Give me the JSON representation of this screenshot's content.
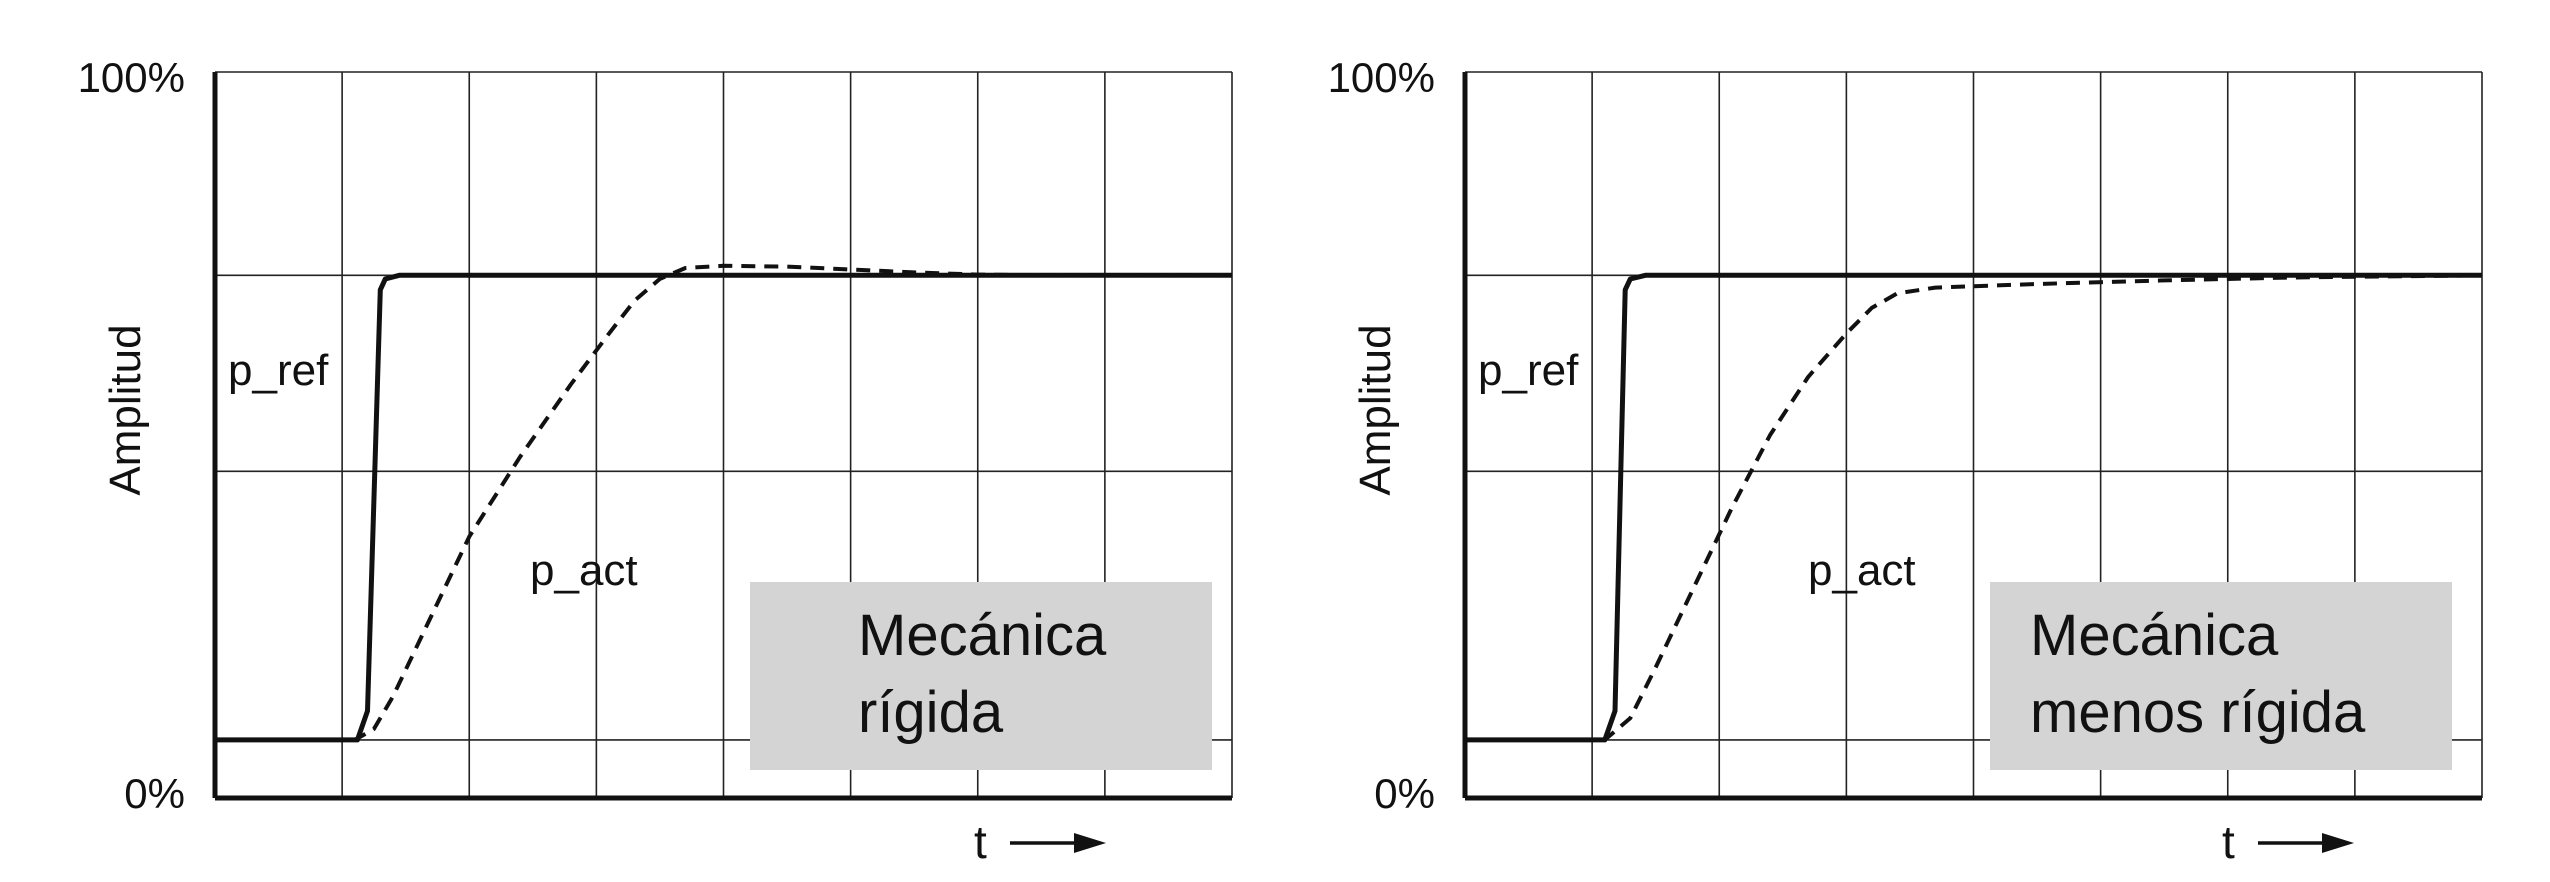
{
  "colors": {
    "line": "#111111",
    "grid": "#222222",
    "box": "#d4d4d4",
    "background": "#ffffff"
  },
  "chart_data": [
    {
      "type": "line",
      "ylabel": "Amplitud",
      "xlabel": "t",
      "x_arrow": "⟶",
      "ytick_top": "100%",
      "ytick_bottom": "0%",
      "xlim": [
        0,
        8
      ],
      "ylim": [
        0,
        100
      ],
      "grid": true,
      "box_lines": [
        "Mecánica",
        "rígida"
      ],
      "series": [
        {
          "name": "p_ref",
          "style": "solid",
          "x": [
            0,
            1.12,
            1.2,
            1.3,
            1.34,
            1.45,
            8
          ],
          "y": [
            8,
            8,
            12,
            70,
            71.5,
            72,
            72
          ]
        },
        {
          "name": "p_act",
          "style": "dashed",
          "x": [
            0,
            1.1,
            1.25,
            1.4,
            1.7,
            2.0,
            2.4,
            2.8,
            3.1,
            3.3,
            3.5,
            3.7,
            4.0,
            4.5,
            5.0,
            5.5,
            6.0,
            6.5,
            8
          ],
          "y": [
            8,
            8,
            9.5,
            14,
            25,
            36,
            47,
            57,
            64,
            68.5,
            71.5,
            73,
            73.3,
            73.2,
            72.8,
            72.4,
            72.1,
            72,
            72
          ]
        }
      ],
      "label_positions_note": ""
    },
    {
      "type": "line",
      "ylabel": "Amplitud",
      "xlabel": "t",
      "x_arrow": "⟶",
      "ytick_top": "100%",
      "ytick_bottom": "0%",
      "xlim": [
        0,
        8
      ],
      "ylim": [
        0,
        100
      ],
      "grid": true,
      "box_lines": [
        "Mecánica",
        "menos rígida"
      ],
      "series": [
        {
          "name": "p_ref",
          "style": "solid",
          "x": [
            0,
            1.1,
            1.18,
            1.26,
            1.3,
            1.42,
            8
          ],
          "y": [
            8,
            8,
            12,
            70,
            71.5,
            72,
            72
          ]
        },
        {
          "name": "p_act",
          "style": "dashed",
          "x": [
            0,
            1.1,
            1.3,
            1.5,
            1.8,
            2.1,
            2.4,
            2.7,
            3.0,
            3.2,
            3.4,
            3.7,
            4.5,
            5.5,
            6.5,
            8
          ],
          "y": [
            8,
            8,
            11,
            18,
            29,
            40,
            50,
            58,
            64,
            67.5,
            69.5,
            70.3,
            70.8,
            71.3,
            71.7,
            72
          ]
        }
      ]
    }
  ]
}
